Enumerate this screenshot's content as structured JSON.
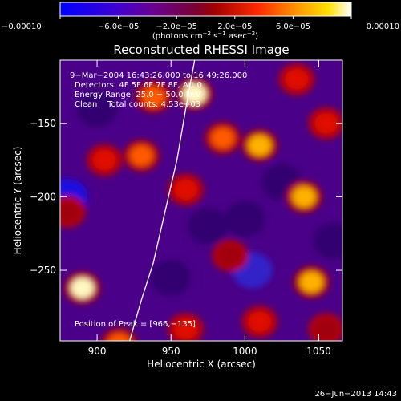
{
  "chart_data": {
    "type": "heatmap",
    "title": "Reconstructed RHESSI Image",
    "xlabel": "Heliocentric X (arcsec)",
    "ylabel": "Heliocentric Y (arcsec)",
    "xlim": [
      875,
      1066
    ],
    "ylim": [
      -298,
      -107
    ],
    "x_ticks": [
      900,
      950,
      1000,
      1050
    ],
    "y_ticks": [
      -250,
      -200,
      -150
    ],
    "x_tick_labels": [
      "900",
      "950",
      "1000",
      "1050"
    ],
    "y_tick_labels": [
      "−250",
      "−200",
      "−150"
    ],
    "colorbar": {
      "range": [
        -0.0001,
        0.0001
      ],
      "tick_labels": [
        "−0.00010",
        "−6.0e−05",
        "−2.0e−05",
        "2.0e−05",
        "6.0e−05",
        "0.00010"
      ],
      "unit_main": "(photons cm",
      "unit_exp1": "−2",
      "unit_mid": " s",
      "unit_exp2": "−1",
      "unit_mid2": " asec",
      "unit_exp3": "−2",
      "unit_end": ")"
    },
    "annotations": [
      "9−Mar−2004 16:43:26.000 to 16:49:26.000",
      "Detectors: 4F 5F 6F 7F 8F, Att 0",
      "Energy Range: 25.0 − 50.0 keV",
      "Clean    Total counts: 4.53e+03"
    ],
    "peak_label": "Position of Peak = [966,−135]",
    "peak": [
      966,
      -135
    ],
    "limb_curve": [
      [
        922,
        -298
      ],
      [
        930,
        -270
      ],
      [
        938,
        -245
      ],
      [
        946,
        -210
      ],
      [
        954,
        -175
      ],
      [
        960,
        -140
      ],
      [
        966,
        -107
      ]
    ],
    "hot_spots": [
      {
        "x": 966,
        "y": -130,
        "v": 1.0
      },
      {
        "x": 890,
        "y": -262,
        "v": 0.95
      },
      {
        "x": 938,
        "y": -132,
        "v": 0.75
      },
      {
        "x": 1010,
        "y": -165,
        "v": 0.85
      },
      {
        "x": 1040,
        "y": -200,
        "v": 0.8
      },
      {
        "x": 1045,
        "y": -258,
        "v": 0.8
      },
      {
        "x": 985,
        "y": -160,
        "v": 0.7
      },
      {
        "x": 930,
        "y": -172,
        "v": 0.65
      },
      {
        "x": 960,
        "y": -195,
        "v": 0.55
      },
      {
        "x": 905,
        "y": -175,
        "v": 0.6
      },
      {
        "x": 1055,
        "y": -150,
        "v": 0.55
      },
      {
        "x": 990,
        "y": -240,
        "v": 0.4
      },
      {
        "x": 915,
        "y": -300,
        "v": 0.7
      },
      {
        "x": 960,
        "y": -290,
        "v": 0.6
      },
      {
        "x": 1010,
        "y": -285,
        "v": 0.55
      },
      {
        "x": 1055,
        "y": -290,
        "v": 0.45
      },
      {
        "x": 1035,
        "y": -120,
        "v": 0.5
      },
      {
        "x": 880,
        "y": -210,
        "v": 0.35
      }
    ],
    "cold_spots": [
      {
        "x": 880,
        "y": -200,
        "v": -0.8
      },
      {
        "x": 975,
        "y": -220,
        "v": -0.5
      },
      {
        "x": 1005,
        "y": -250,
        "v": -0.6
      },
      {
        "x": 1000,
        "y": -215,
        "v": -0.45
      },
      {
        "x": 900,
        "y": -140,
        "v": -0.4
      },
      {
        "x": 1060,
        "y": -230,
        "v": -0.45
      },
      {
        "x": 950,
        "y": -255,
        "v": -0.35
      },
      {
        "x": 1025,
        "y": -190,
        "v": -0.3
      }
    ]
  },
  "footer": {
    "timestamp": "26−Jun−2013 14:43"
  }
}
